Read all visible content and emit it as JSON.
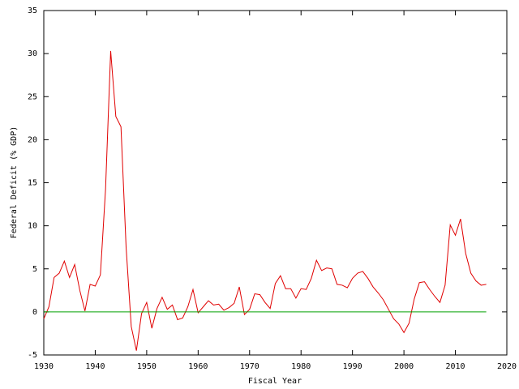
{
  "chart_data": {
    "type": "line",
    "xlabel": "Fiscal Year",
    "ylabel": "Federal Deficit (% GDP)",
    "xlim": [
      1930,
      2020
    ],
    "xticks": [
      1930,
      1940,
      1950,
      1960,
      1970,
      1980,
      1990,
      2000,
      2010,
      2020
    ],
    "ylim": [
      -5,
      35
    ],
    "yticks": [
      -5,
      0,
      5,
      10,
      15,
      20,
      25,
      30,
      35
    ],
    "grid": false,
    "series": [
      {
        "color": "#e00000",
        "x": [
          1930,
          1931,
          1932,
          1933,
          1934,
          1935,
          1936,
          1937,
          1938,
          1939,
          1940,
          1941,
          1942,
          1943,
          1944,
          1945,
          1946,
          1947,
          1948,
          1949,
          1950,
          1951,
          1952,
          1953,
          1954,
          1955,
          1956,
          1957,
          1958,
          1959,
          1960,
          1961,
          1962,
          1963,
          1964,
          1965,
          1966,
          1967,
          1968,
          1969,
          1970,
          1971,
          1972,
          1973,
          1974,
          1975,
          1976,
          1977,
          1978,
          1979,
          1980,
          1981,
          1982,
          1983,
          1984,
          1985,
          1986,
          1987,
          1988,
          1989,
          1990,
          1991,
          1992,
          1993,
          1994,
          1995,
          1996,
          1997,
          1998,
          1999,
          2000,
          2001,
          2002,
          2003,
          2004,
          2005,
          2006,
          2007,
          2008,
          2009,
          2010,
          2011,
          2012,
          2013,
          2014,
          2015,
          2016
        ],
        "values": [
          -0.8,
          0.6,
          4.0,
          4.5,
          5.9,
          4.0,
          5.5,
          2.5,
          0.1,
          3.2,
          3.0,
          4.3,
          14.2,
          30.3,
          22.7,
          21.5,
          7.5,
          -1.7,
          -4.5,
          -0.2,
          1.1,
          -1.9,
          0.4,
          1.7,
          0.3,
          0.8,
          -0.9,
          -0.7,
          0.6,
          2.6,
          -0.1,
          0.6,
          1.3,
          0.8,
          0.9,
          0.2,
          0.5,
          1.0,
          2.9,
          -0.3,
          0.3,
          2.1,
          2.0,
          1.1,
          0.4,
          3.3,
          4.2,
          2.7,
          2.7,
          1.6,
          2.7,
          2.6,
          3.9,
          6.0,
          4.8,
          5.1,
          5.0,
          3.2,
          3.1,
          2.8,
          3.9,
          4.5,
          4.7,
          3.9,
          2.9,
          2.2,
          1.4,
          0.3,
          -0.8,
          -1.4,
          -2.4,
          -1.3,
          1.5,
          3.4,
          3.5,
          2.6,
          1.8,
          1.1,
          3.1,
          10.1,
          8.9,
          10.8,
          6.8,
          4.5,
          3.6,
          3.1,
          3.2
        ]
      },
      {
        "color": "#00a000",
        "x": [
          1930,
          2016
        ],
        "values": [
          0,
          0
        ]
      }
    ]
  }
}
